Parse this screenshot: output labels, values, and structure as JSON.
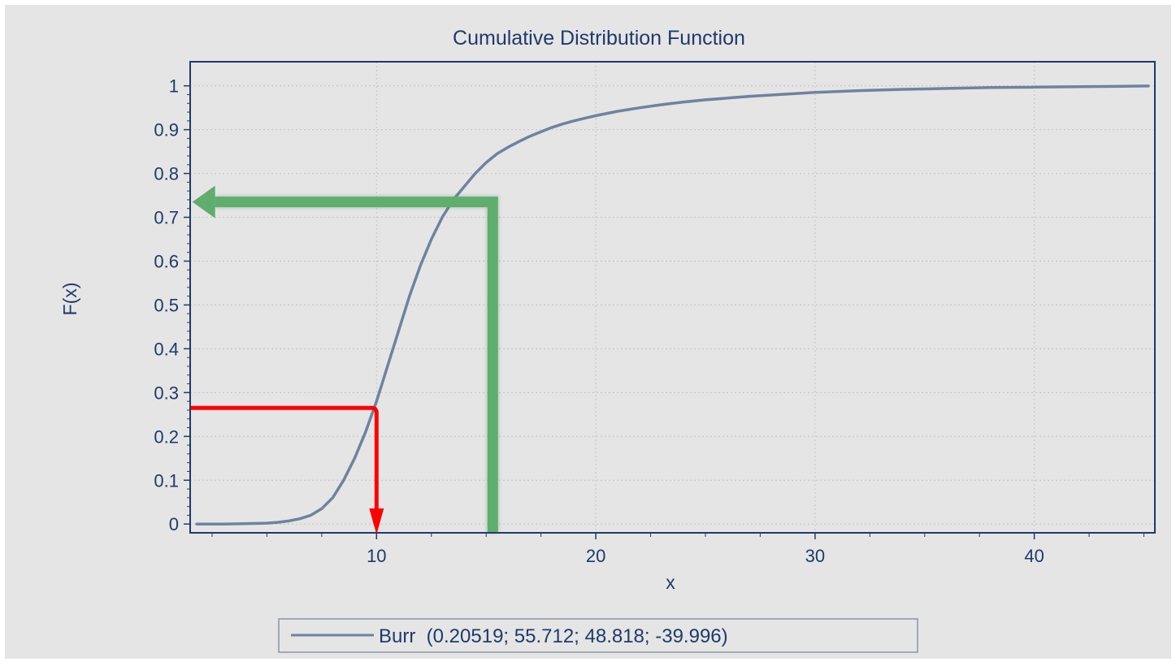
{
  "chart_data": {
    "type": "line",
    "title": "Cumulative Distribution Function",
    "xlabel": "x",
    "ylabel": "F(x)",
    "xlim": [
      1.5,
      45.5
    ],
    "ylim": [
      -0.02,
      1.055
    ],
    "x_ticks": [
      10,
      20,
      30,
      40
    ],
    "x_tick_labels": [
      "10",
      "20",
      "30",
      "40"
    ],
    "y_ticks": [
      0,
      0.1,
      0.2,
      0.3,
      0.4,
      0.5,
      0.6,
      0.7,
      0.8,
      0.9,
      1
    ],
    "y_tick_labels": [
      "0",
      "0.1",
      "0.2",
      "0.3",
      "0.4",
      "0.5",
      "0.6",
      "0.7",
      "0.8",
      "0.9",
      "1"
    ],
    "grid": true,
    "legend_position": "bottom",
    "series": [
      {
        "name": "Burr  (0.20519; 55.712; 48.818; -39.996)",
        "color": "#6f82a0",
        "x": [
          1.8,
          3,
          4,
          5,
          5.5,
          6,
          6.5,
          7,
          7.5,
          8,
          8.5,
          9,
          9.5,
          10,
          10.5,
          11,
          11.5,
          12,
          12.5,
          13,
          13.5,
          14,
          14.5,
          15,
          15.5,
          16,
          16.5,
          17,
          17.5,
          18,
          18.5,
          19,
          19.5,
          20,
          21,
          22,
          23,
          24,
          25,
          26,
          27,
          28,
          29,
          30,
          32,
          34,
          36,
          38,
          40,
          42,
          44,
          45.2
        ],
        "y": [
          0,
          0,
          0.001,
          0.002,
          0.004,
          0.007,
          0.012,
          0.02,
          0.035,
          0.06,
          0.1,
          0.15,
          0.21,
          0.28,
          0.36,
          0.44,
          0.52,
          0.59,
          0.65,
          0.7,
          0.74,
          0.77,
          0.8,
          0.825,
          0.845,
          0.86,
          0.873,
          0.885,
          0.895,
          0.905,
          0.913,
          0.92,
          0.926,
          0.932,
          0.942,
          0.95,
          0.957,
          0.963,
          0.968,
          0.972,
          0.976,
          0.979,
          0.982,
          0.985,
          0.989,
          0.992,
          0.994,
          0.996,
          0.997,
          0.998,
          0.999,
          0.9995
        ]
      }
    ],
    "annotations": [
      {
        "kind": "elbow-arrow",
        "color": "#ff0000",
        "from_y": 0.265,
        "at_x": 10,
        "to_y": 0,
        "description": "F(x) to x"
      },
      {
        "kind": "elbow-arrow",
        "color": "#5fae6e",
        "from_x": 15.3,
        "at_y": 0.735,
        "to_x": 1.6,
        "description": "x to F(x)"
      }
    ]
  }
}
